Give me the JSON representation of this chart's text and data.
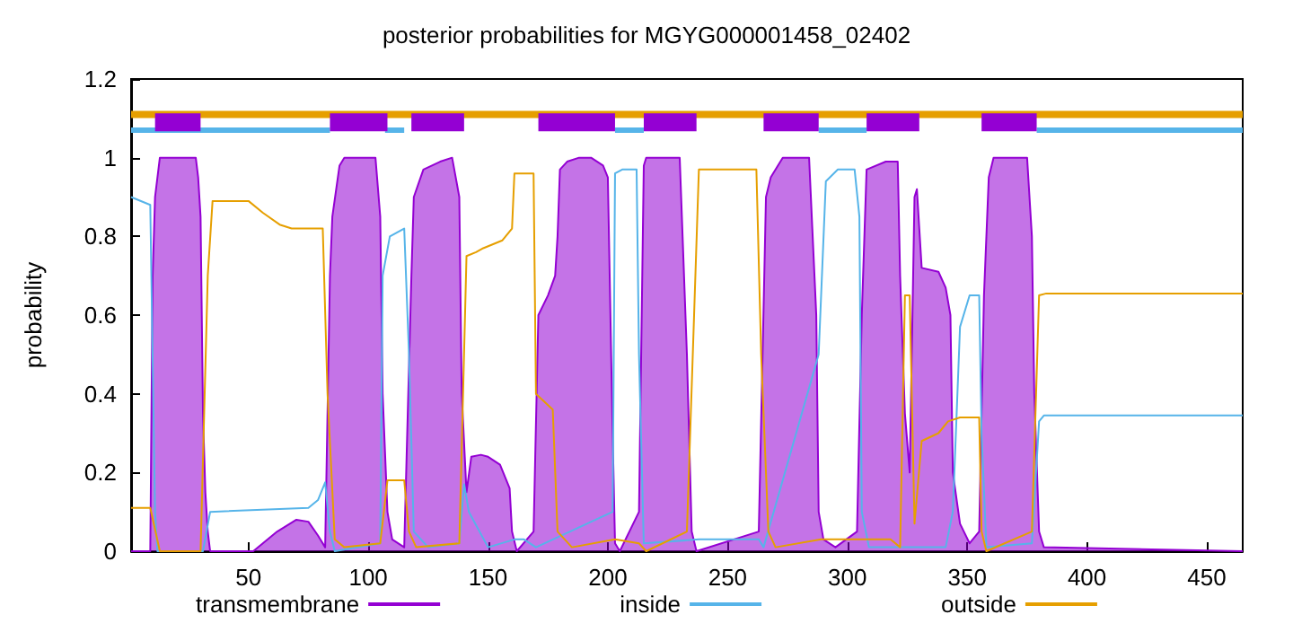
{
  "chart_data": {
    "type": "line",
    "title": "posterior probabilities for MGYG000001458_02402",
    "ylabel": "probability",
    "xlim": [
      1,
      465
    ],
    "xticks": [
      50,
      100,
      150,
      200,
      250,
      300,
      350,
      400,
      450
    ],
    "ylim": [
      0,
      1.2
    ],
    "yticks": [
      0,
      0.2,
      0.4,
      0.6,
      0.8,
      1,
      1.2
    ],
    "grid": false,
    "legend": "bottom",
    "marker": "none",
    "line_style": "solid",
    "series": [
      {
        "name": "transmembrane",
        "type": "area",
        "color": "#9400d3",
        "x": [
          1,
          9,
          10,
          11,
          13,
          28,
          29,
          30,
          31,
          32,
          33,
          34,
          52,
          62,
          70,
          75,
          79,
          82,
          84,
          85,
          88,
          90,
          103,
          105,
          106,
          108,
          110,
          115,
          118,
          119,
          123,
          130,
          135,
          138,
          139,
          141,
          143,
          147,
          150,
          155,
          159,
          160,
          162,
          169,
          171,
          175,
          178,
          179,
          180,
          183,
          188,
          193,
          198,
          200,
          202,
          203,
          205,
          213,
          215,
          216,
          230,
          233,
          235,
          237,
          263,
          266,
          268,
          273,
          284,
          287,
          288,
          290,
          295,
          304,
          306,
          308,
          316,
          321,
          322,
          324,
          326,
          328,
          329,
          331,
          338,
          341,
          343,
          344,
          347,
          351,
          355,
          357,
          359,
          361,
          375,
          377,
          378,
          380,
          382,
          465
        ],
        "values": [
          0,
          0,
          0.7,
          0.9,
          1,
          1,
          0.95,
          0.85,
          0.35,
          0.15,
          0.05,
          0,
          0,
          0.05,
          0.08,
          0.075,
          0.04,
          0.01,
          0.7,
          0.85,
          0.98,
          1,
          1,
          0.85,
          0.4,
          0.1,
          0.03,
          0.01,
          0.7,
          0.9,
          0.97,
          0.99,
          1,
          0.9,
          0.4,
          0.15,
          0.24,
          0.245,
          0.24,
          0.22,
          0.16,
          0.05,
          0,
          0.05,
          0.6,
          0.65,
          0.7,
          0.8,
          0.97,
          0.99,
          1,
          1,
          0.98,
          0.95,
          0.3,
          0.02,
          0,
          0.1,
          0.98,
          1,
          1,
          0.5,
          0.05,
          0,
          0.05,
          0.9,
          0.95,
          1,
          1,
          0.6,
          0.1,
          0.03,
          0.01,
          0.05,
          0.6,
          0.97,
          0.99,
          0.99,
          0.7,
          0.35,
          0.2,
          0.9,
          0.92,
          0.72,
          0.71,
          0.67,
          0.6,
          0.2,
          0.07,
          0.02,
          0.05,
          0.65,
          0.95,
          1,
          1,
          0.8,
          0.4,
          0.05,
          0.01,
          0
        ]
      },
      {
        "name": "inside",
        "color": "#56b4e9",
        "x": [
          1,
          9,
          11,
          12,
          31,
          34,
          75,
          79,
          82,
          84,
          86,
          105,
          106,
          109,
          115,
          117,
          119,
          125,
          138,
          140,
          142,
          150,
          161,
          165,
          170,
          202,
          203,
          206,
          212,
          213,
          215,
          238,
          263,
          265,
          288,
          291,
          296,
          303,
          305,
          306,
          309,
          341,
          344,
          347,
          351,
          355,
          356,
          358,
          377,
          380,
          382,
          465
        ],
        "values": [
          0.9,
          0.88,
          0.1,
          0,
          0,
          0.1,
          0.11,
          0.13,
          0.175,
          0.05,
          0,
          0.02,
          0.7,
          0.8,
          0.82,
          0.5,
          0.05,
          0.01,
          0.02,
          0.17,
          0.1,
          0.01,
          0.03,
          0.03,
          0.01,
          0.1,
          0.96,
          0.97,
          0.97,
          0.5,
          0.02,
          0.03,
          0.03,
          0.01,
          0.5,
          0.94,
          0.97,
          0.97,
          0.85,
          0.1,
          0.01,
          0.01,
          0.1,
          0.57,
          0.65,
          0.65,
          0.3,
          0.01,
          0.02,
          0.33,
          0.345,
          0.345
        ]
      },
      {
        "name": "outside",
        "color": "#e69f00",
        "x": [
          1,
          9,
          13,
          30,
          33,
          35,
          50,
          56,
          63,
          68,
          81,
          83,
          86,
          90,
          105,
          108,
          115,
          117,
          120,
          138,
          141,
          145,
          148,
          156,
          160,
          161,
          169,
          170,
          177,
          179,
          185,
          203,
          213,
          216,
          233,
          236,
          238,
          262,
          264,
          267,
          270,
          289,
          318,
          322,
          324,
          326,
          328,
          331,
          338,
          342,
          347,
          355,
          356,
          358,
          377,
          380,
          383,
          465
        ],
        "values": [
          0.11,
          0.11,
          0,
          0,
          0.7,
          0.89,
          0.89,
          0.86,
          0.83,
          0.82,
          0.82,
          0.4,
          0.03,
          0.01,
          0.02,
          0.18,
          0.18,
          0.05,
          0.01,
          0.02,
          0.75,
          0.76,
          0.77,
          0.79,
          0.82,
          0.96,
          0.96,
          0.4,
          0.36,
          0.05,
          0.01,
          0.03,
          0.02,
          0,
          0.05,
          0.6,
          0.97,
          0.97,
          0.5,
          0.05,
          0.01,
          0.03,
          0.03,
          0.01,
          0.65,
          0.65,
          0.07,
          0.28,
          0.3,
          0.33,
          0.34,
          0.34,
          0.05,
          0,
          0.05,
          0.65,
          0.655,
          0.655
        ]
      },
      {
        "color": "#e69f00",
        "x": [
          1,
          465
        ],
        "values": [
          1.11,
          1.11
        ]
      },
      {
        "color": "#56b4e9",
        "x": [
          1,
          84
        ],
        "values": [
          1.07,
          1.07
        ]
      },
      {
        "color": "#56b4e9",
        "x": [
          107,
          115
        ],
        "values": [
          1.07,
          1.07
        ]
      },
      {
        "color": "#56b4e9",
        "x": [
          203,
          215
        ],
        "values": [
          1.07,
          1.07
        ]
      },
      {
        "color": "#56b4e9",
        "x": [
          288,
          308
        ],
        "values": [
          1.07,
          1.07
        ]
      },
      {
        "color": "#56b4e9",
        "x": [
          379,
          465
        ],
        "values": [
          1.07,
          1.07
        ]
      },
      {
        "color": "#9400d3",
        "x": [
          11,
          30
        ],
        "values": [
          1.09,
          1.09
        ]
      },
      {
        "color": "#9400d3",
        "x": [
          84,
          108
        ],
        "values": [
          1.09,
          1.09
        ]
      },
      {
        "color": "#9400d3",
        "x": [
          118,
          140
        ],
        "values": [
          1.09,
          1.09
        ]
      },
      {
        "color": "#9400d3",
        "x": [
          171,
          203
        ],
        "values": [
          1.09,
          1.09
        ]
      },
      {
        "color": "#9400d3",
        "x": [
          215,
          237
        ],
        "values": [
          1.09,
          1.09
        ]
      },
      {
        "color": "#9400d3",
        "x": [
          265,
          288
        ],
        "values": [
          1.09,
          1.09
        ]
      },
      {
        "color": "#9400d3",
        "x": [
          308,
          330
        ],
        "values": [
          1.09,
          1.09
        ]
      },
      {
        "color": "#9400d3",
        "x": [
          356,
          379
        ],
        "values": [
          1.09,
          1.09
        ]
      }
    ]
  }
}
